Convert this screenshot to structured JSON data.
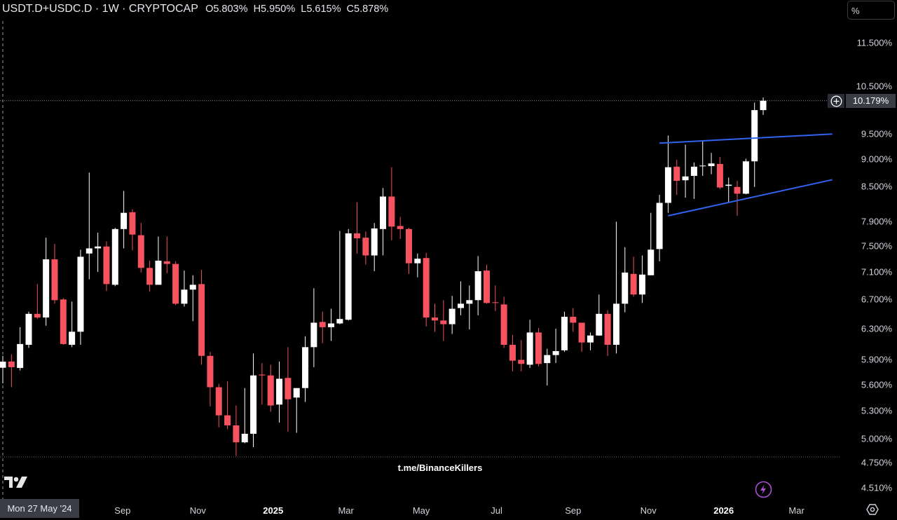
{
  "header": {
    "symbol": "USDT.D+USDC.D · 1W · CRYPTOCAP",
    "open": "O5.803%",
    "high": "H5.950%",
    "low": "L5.615%",
    "close": "C5.878%"
  },
  "unit_selector": "%",
  "current_price_label": "10.179%",
  "crosshair_date_label": "Mon 27 May '24",
  "watermark": "t.me/BinanceKillers",
  "colors": {
    "background": "#000000",
    "up": "#ffffff",
    "down": "#f7525f",
    "trendline": "#2f63f0",
    "bolt": "#b04fd6"
  },
  "icons": [
    "tradingview-logo-icon",
    "plus-circle-icon",
    "lightning-icon",
    "gear-icon"
  ],
  "chart_data": {
    "type": "candlestick",
    "title": "USDT.D+USDC.D · 1W · CRYPTOCAP",
    "interval": "1W",
    "start_date": "2024-05-27",
    "y_scale": "log",
    "ylim": [
      4.5,
      12.0
    ],
    "grid": false,
    "candle_format": [
      "open",
      "high",
      "low",
      "close"
    ],
    "candles": [
      [
        5.803,
        5.95,
        5.615,
        5.878
      ],
      [
        5.88,
        5.97,
        5.57,
        5.81
      ],
      [
        5.8,
        6.32,
        5.77,
        6.1
      ],
      [
        6.09,
        6.53,
        6.05,
        6.5
      ],
      [
        6.5,
        6.92,
        6.43,
        6.45
      ],
      [
        6.45,
        7.63,
        6.34,
        7.29
      ],
      [
        7.29,
        7.53,
        6.64,
        6.69
      ],
      [
        6.7,
        6.72,
        6.09,
        6.1
      ],
      [
        6.09,
        6.67,
        6.06,
        6.26
      ],
      [
        6.26,
        7.44,
        6.09,
        7.33
      ],
      [
        7.38,
        8.75,
        6.99,
        7.46
      ],
      [
        7.46,
        7.71,
        7.1,
        7.49
      ],
      [
        7.49,
        7.57,
        6.82,
        6.92
      ],
      [
        6.91,
        7.79,
        6.89,
        7.77
      ],
      [
        7.77,
        8.42,
        7.46,
        8.04
      ],
      [
        8.05,
        8.1,
        7.43,
        7.68
      ],
      [
        7.67,
        7.87,
        7.09,
        7.16
      ],
      [
        7.16,
        7.27,
        6.81,
        6.91
      ],
      [
        6.91,
        7.65,
        6.91,
        7.27
      ],
      [
        7.26,
        7.65,
        7.08,
        7.22
      ],
      [
        7.22,
        7.26,
        6.62,
        6.64
      ],
      [
        6.64,
        7.12,
        6.6,
        6.84
      ],
      [
        6.84,
        7.05,
        6.4,
        6.91
      ],
      [
        6.92,
        7.13,
        5.84,
        5.95
      ],
      [
        5.95,
        6.0,
        5.35,
        5.57
      ],
      [
        5.57,
        5.61,
        5.12,
        5.25
      ],
      [
        5.25,
        5.64,
        5.1,
        5.14
      ],
      [
        5.14,
        5.36,
        4.82,
        4.96
      ],
      [
        4.96,
        5.56,
        4.95,
        5.05
      ],
      [
        5.05,
        5.98,
        4.91,
        5.71
      ],
      [
        5.72,
        5.86,
        5.37,
        5.71
      ],
      [
        5.71,
        5.84,
        5.29,
        5.36
      ],
      [
        5.37,
        5.88,
        5.17,
        5.67
      ],
      [
        5.68,
        6.06,
        5.07,
        5.43
      ],
      [
        5.45,
        5.56,
        5.06,
        5.56
      ],
      [
        5.56,
        6.2,
        5.4,
        6.06
      ],
      [
        6.06,
        6.86,
        5.81,
        6.38
      ],
      [
        6.39,
        6.53,
        6.11,
        6.32
      ],
      [
        6.32,
        6.57,
        6.14,
        6.37
      ],
      [
        6.37,
        7.74,
        6.36,
        6.43
      ],
      [
        6.42,
        7.77,
        6.41,
        7.7
      ],
      [
        7.7,
        8.22,
        7.38,
        7.62
      ],
      [
        7.63,
        7.73,
        7.21,
        7.35
      ],
      [
        7.35,
        7.87,
        7.11,
        7.78
      ],
      [
        7.77,
        8.47,
        7.35,
        8.32
      ],
      [
        8.32,
        8.85,
        7.59,
        7.81
      ],
      [
        7.82,
        7.97,
        7.61,
        7.77
      ],
      [
        7.77,
        7.79,
        7.07,
        7.23
      ],
      [
        7.23,
        7.38,
        7.02,
        7.3
      ],
      [
        7.31,
        7.39,
        6.33,
        6.45
      ],
      [
        6.45,
        6.64,
        6.26,
        6.41
      ],
      [
        6.41,
        6.69,
        6.14,
        6.36
      ],
      [
        6.36,
        6.75,
        6.23,
        6.57
      ],
      [
        6.58,
        6.96,
        6.48,
        6.64
      ],
      [
        6.64,
        6.9,
        6.29,
        6.69
      ],
      [
        6.69,
        7.34,
        6.48,
        7.11
      ],
      [
        7.12,
        7.21,
        6.64,
        6.65
      ],
      [
        6.66,
        6.9,
        6.54,
        6.65
      ],
      [
        6.63,
        6.74,
        6.05,
        6.09
      ],
      [
        6.09,
        6.22,
        5.76,
        5.89
      ],
      [
        5.9,
        6.15,
        5.76,
        5.85
      ],
      [
        5.84,
        6.42,
        5.8,
        6.25
      ],
      [
        6.25,
        6.31,
        5.82,
        5.85
      ],
      [
        5.86,
        6.04,
        5.59,
        5.96
      ],
      [
        5.96,
        6.3,
        5.86,
        6.01
      ],
      [
        6.02,
        6.53,
        6.0,
        6.46
      ],
      [
        6.46,
        6.58,
        6.26,
        6.38
      ],
      [
        6.38,
        6.38,
        6.0,
        6.12
      ],
      [
        6.12,
        6.25,
        6.02,
        6.21
      ],
      [
        6.21,
        6.77,
        6.21,
        6.5
      ],
      [
        6.5,
        6.55,
        5.95,
        6.09
      ],
      [
        6.09,
        7.89,
        5.98,
        6.64
      ],
      [
        6.64,
        7.48,
        6.52,
        7.09
      ],
      [
        7.07,
        7.33,
        6.74,
        6.77
      ],
      [
        6.77,
        7.35,
        6.65,
        7.06
      ],
      [
        7.05,
        8.04,
        7.05,
        7.44
      ],
      [
        7.45,
        8.35,
        7.26,
        8.21
      ],
      [
        8.21,
        9.46,
        8.04,
        8.85
      ],
      [
        8.86,
        8.99,
        8.35,
        8.6
      ],
      [
        8.61,
        9.28,
        8.3,
        8.68
      ],
      [
        8.69,
        8.94,
        8.28,
        8.86
      ],
      [
        8.87,
        9.37,
        8.69,
        8.88
      ],
      [
        8.87,
        9.12,
        8.72,
        8.92
      ],
      [
        8.91,
        9.04,
        8.45,
        8.48
      ],
      [
        8.51,
        8.66,
        8.21,
        8.53
      ],
      [
        8.49,
        8.6,
        7.99,
        8.37
      ],
      [
        8.37,
        9.01,
        8.36,
        8.96
      ],
      [
        8.96,
        10.14,
        8.49,
        9.98
      ],
      [
        9.98,
        10.25,
        9.88,
        10.179
      ]
    ],
    "current_price": 10.179,
    "trendlines": [
      {
        "from": {
          "date": "2025-11-10",
          "value": 9.31
        },
        "to": {
          "date": "2026-03-30",
          "value": 9.49
        }
      },
      {
        "from": {
          "date": "2025-11-17",
          "value": 7.99
        },
        "to": {
          "date": "2026-03-30",
          "value": 8.62
        }
      }
    ],
    "y_ticks": [
      {
        "value": 11.5,
        "label": "11.500%"
      },
      {
        "value": 10.5,
        "label": "10.500%"
      },
      {
        "value": 9.5,
        "label": "9.500%"
      },
      {
        "value": 9.0,
        "label": "9.000%"
      },
      {
        "value": 8.5,
        "label": "8.500%"
      },
      {
        "value": 7.9,
        "label": "7.900%"
      },
      {
        "value": 7.5,
        "label": "7.500%"
      },
      {
        "value": 7.1,
        "label": "7.100%"
      },
      {
        "value": 6.7,
        "label": "6.700%"
      },
      {
        "value": 6.3,
        "label": "6.300%"
      },
      {
        "value": 5.9,
        "label": "5.900%"
      },
      {
        "value": 5.6,
        "label": "5.600%"
      },
      {
        "value": 5.3,
        "label": "5.300%"
      },
      {
        "value": 5.0,
        "label": "5.000%"
      },
      {
        "value": 4.75,
        "label": "4.750%"
      },
      {
        "value": 4.51,
        "label": "4.510%"
      }
    ],
    "x_ticks": [
      {
        "date": "2024-09-01",
        "label": "Sep",
        "bold": false
      },
      {
        "date": "2024-11-01",
        "label": "Nov",
        "bold": false
      },
      {
        "date": "2025-01-01",
        "label": "2025",
        "bold": true
      },
      {
        "date": "2025-03-01",
        "label": "Mar",
        "bold": false
      },
      {
        "date": "2025-05-01",
        "label": "May",
        "bold": false
      },
      {
        "date": "2025-07-01",
        "label": "Jul",
        "bold": false
      },
      {
        "date": "2025-09-01",
        "label": "Sep",
        "bold": false
      },
      {
        "date": "2025-11-01",
        "label": "Nov",
        "bold": false
      },
      {
        "date": "2026-01-01",
        "label": "2026",
        "bold": true
      },
      {
        "date": "2026-03-01",
        "label": "Mar",
        "bold": false
      }
    ]
  }
}
